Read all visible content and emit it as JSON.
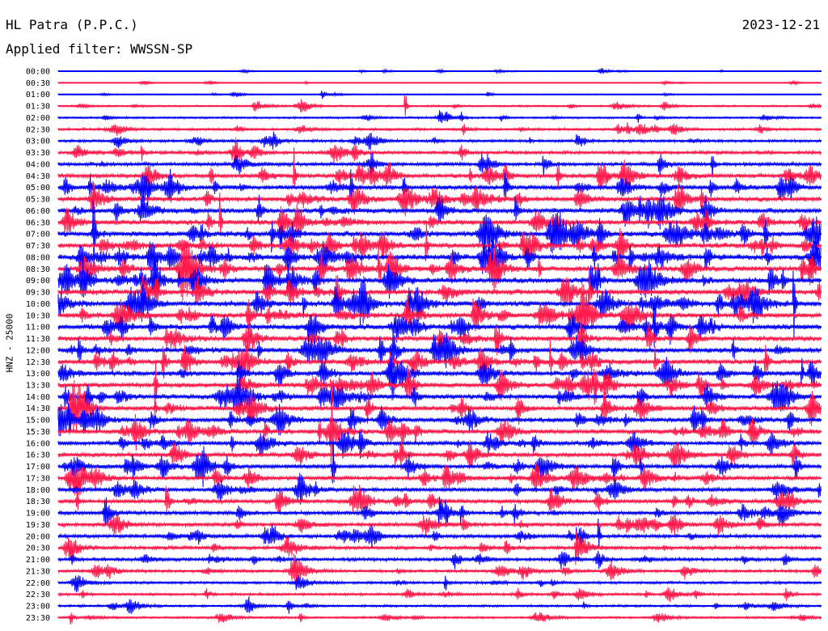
{
  "header": {
    "station": "HL Patra (P.P.C.)",
    "filter": "Applied filter: WWSSN-SP",
    "date": "2023-12-21"
  },
  "chart_data": {
    "type": "line",
    "title": "HL Patra (P.P.C.)",
    "subtitle": "Applied filter: WWSSN-SP",
    "date": "2023-12-21",
    "ylabel": "HNZ - 25000",
    "row_interval_minutes": 30,
    "row_labels": [
      "00:00",
      "00:30",
      "01:00",
      "01:30",
      "02:00",
      "02:30",
      "03:00",
      "03:30",
      "04:00",
      "04:30",
      "05:00",
      "05:30",
      "06:00",
      "06:30",
      "07:00",
      "07:30",
      "08:00",
      "08:30",
      "09:00",
      "09:30",
      "10:00",
      "10:30",
      "11:00",
      "11:30",
      "12:00",
      "12:30",
      "13:00",
      "13:30",
      "14:00",
      "14:30",
      "15:00",
      "15:30",
      "16:00",
      "16:30",
      "17:00",
      "17:30",
      "18:00",
      "18:30",
      "19:00",
      "19:30",
      "20:00",
      "20:30",
      "21:00",
      "21:30",
      "22:00",
      "22:30",
      "23:00",
      "23:30"
    ],
    "row_activity": [
      0.25,
      0.2,
      0.3,
      0.45,
      0.5,
      0.65,
      0.7,
      0.85,
      1.0,
      1.1,
      1.2,
      1.25,
      1.3,
      1.35,
      1.4,
      1.4,
      1.45,
      1.45,
      1.45,
      1.45,
      1.45,
      1.4,
      1.4,
      1.35,
      1.35,
      1.3,
      1.3,
      1.25,
      1.25,
      1.2,
      1.2,
      1.2,
      1.15,
      1.15,
      1.1,
      1.1,
      1.05,
      1.05,
      1.0,
      1.0,
      0.95,
      0.9,
      0.85,
      0.75,
      0.7,
      0.65,
      0.6,
      0.55
    ],
    "series_colors": [
      "#0000ff",
      "#ff1a4b"
    ],
    "grid": false
  }
}
